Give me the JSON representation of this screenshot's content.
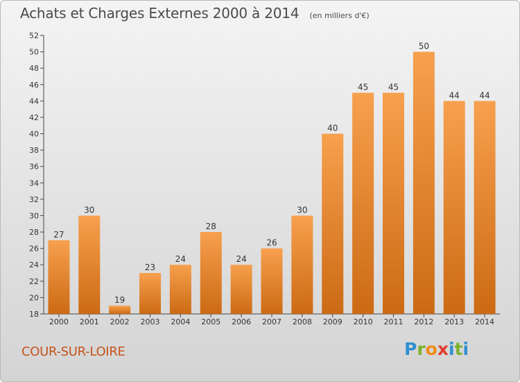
{
  "title": "Achats et Charges Externes 2000 à 2014",
  "unit": "(en milliers d'€)",
  "commune": "COUR-SUR-LOIRE",
  "logo": {
    "letters": [
      "P",
      "r",
      "o",
      "x",
      "i",
      "t",
      "i"
    ]
  },
  "colors": {
    "bar_light": "#f7a04e",
    "bar_dark": "#cc6a14",
    "title": "#4a4a4a",
    "commune": "#c4541c"
  },
  "chart_data": {
    "type": "bar",
    "title": "Achats et Charges Externes 2000 à 2014",
    "subtitle": "(en milliers d'€)",
    "xlabel": "",
    "ylabel": "",
    "categories": [
      "2000",
      "2001",
      "2002",
      "2003",
      "2004",
      "2005",
      "2006",
      "2007",
      "2008",
      "2009",
      "2010",
      "2011",
      "2012",
      "2013",
      "2014"
    ],
    "values": [
      27,
      30,
      19,
      23,
      24,
      28,
      24,
      26,
      30,
      40,
      45,
      45,
      50,
      44,
      44
    ],
    "ylim": [
      18,
      52
    ],
    "yticks": [
      18,
      20,
      22,
      24,
      26,
      28,
      30,
      32,
      34,
      36,
      38,
      40,
      42,
      44,
      46,
      48,
      50,
      52
    ],
    "grid": false,
    "data_labels": true
  }
}
